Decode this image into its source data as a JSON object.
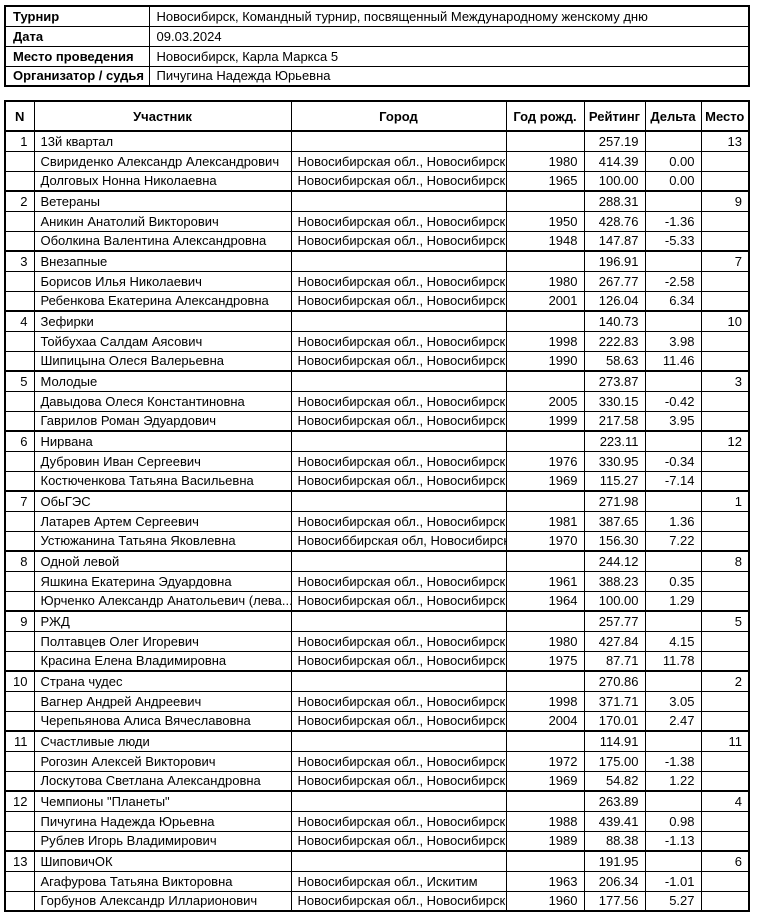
{
  "info": {
    "rows": [
      {
        "label": "Турнир",
        "value": "Новосибирск, Командный турнир, посвященный Международному женскому дню"
      },
      {
        "label": "Дата",
        "value": "09.03.2024"
      },
      {
        "label": "Место проведения",
        "value": "Новосибирск, Карла Маркса 5"
      },
      {
        "label": "Организатор / судья",
        "value": "Пичугина Надежда Юрьевна"
      }
    ]
  },
  "results": {
    "headers": [
      "N",
      "Участник",
      "Город",
      "Год рожд.",
      "Рейтинг",
      "Дельта",
      "Место"
    ],
    "teams": [
      {
        "n": "1",
        "name": "13й квартал",
        "rating": "257.19",
        "place": "13",
        "players": [
          {
            "name": "Свириденко Александр Александрович",
            "city": "Новосибирская обл., Новосибирск",
            "year": "1980",
            "rating": "414.39",
            "delta": "0.00"
          },
          {
            "name": "Долговых Нонна Николаевна",
            "city": "Новосибирская обл., Новосибирск",
            "year": "1965",
            "rating": "100.00",
            "delta": "0.00"
          }
        ]
      },
      {
        "n": "2",
        "name": "Ветераны",
        "rating": "288.31",
        "place": "9",
        "players": [
          {
            "name": "Аникин Анатолий Викторович",
            "city": "Новосибирская обл., Новосибирск",
            "year": "1950",
            "rating": "428.76",
            "delta": "-1.36"
          },
          {
            "name": "Оболкина Валентина Александровна",
            "city": "Новосибирская обл., Новосибирск",
            "year": "1948",
            "rating": "147.87",
            "delta": "-5.33"
          }
        ]
      },
      {
        "n": "3",
        "name": "Внезапные",
        "rating": "196.91",
        "place": "7",
        "players": [
          {
            "name": "Борисов Илья Николаевич",
            "city": "Новосибирская обл., Новосибирск",
            "year": "1980",
            "rating": "267.77",
            "delta": "-2.58"
          },
          {
            "name": "Ребенкова Екатерина Александровна",
            "city": "Новосибирская обл., Новосибирск",
            "year": "2001",
            "rating": "126.04",
            "delta": "6.34"
          }
        ]
      },
      {
        "n": "4",
        "name": "Зефирки",
        "rating": "140.73",
        "place": "10",
        "players": [
          {
            "name": "Тойбухаа Салдам Аясович",
            "city": "Новосибирская обл., Новосибирск",
            "year": "1998",
            "rating": "222.83",
            "delta": "3.98"
          },
          {
            "name": "Шипицына Олеся Валерьевна",
            "city": "Новосибирская обл., Новосибирск",
            "year": "1990",
            "rating": "58.63",
            "delta": "11.46"
          }
        ]
      },
      {
        "n": "5",
        "name": "Молодые",
        "rating": "273.87",
        "place": "3",
        "players": [
          {
            "name": "Давыдова Олеся Константиновна",
            "city": "Новосибирская обл., Новосибирск",
            "year": "2005",
            "rating": "330.15",
            "delta": "-0.42"
          },
          {
            "name": "Гаврилов Роман Эдуардович",
            "city": "Новосибирская обл., Новосибирск",
            "year": "1999",
            "rating": "217.58",
            "delta": "3.95"
          }
        ]
      },
      {
        "n": "6",
        "name": "Нирвана",
        "rating": "223.11",
        "place": "12",
        "players": [
          {
            "name": "Дубровин Иван Сергеевич",
            "city": "Новосибирская обл., Новосибирск",
            "year": "1976",
            "rating": "330.95",
            "delta": "-0.34"
          },
          {
            "name": "Костюченкова Татьяна Васильевна",
            "city": "Новосибирская обл., Новосибирск",
            "year": "1969",
            "rating": "115.27",
            "delta": "-7.14"
          }
        ]
      },
      {
        "n": "7",
        "name": "ОбьГЭС",
        "rating": "271.98",
        "place": "1",
        "players": [
          {
            "name": "Латарев Артем Сергеевич",
            "city": "Новосибирская обл., Новосибирск",
            "year": "1981",
            "rating": "387.65",
            "delta": "1.36"
          },
          {
            "name": "Устюжанина Татьяна Яковлевна",
            "city": "Новосиббирская обл, Новосибирск",
            "year": "1970",
            "rating": "156.30",
            "delta": "7.22"
          }
        ]
      },
      {
        "n": "8",
        "name": "Одной левой",
        "rating": "244.12",
        "place": "8",
        "players": [
          {
            "name": "Яшкина Екатерина Эдуардовна",
            "city": "Новосибирская обл., Новосибирск",
            "year": "1961",
            "rating": "388.23",
            "delta": "0.35"
          },
          {
            "name": "Юрченко Александр Анатольевич (лева...",
            "city": "Новосибирская обл., Новосибирск",
            "year": "1964",
            "rating": "100.00",
            "delta": "1.29"
          }
        ]
      },
      {
        "n": "9",
        "name": "РЖД",
        "rating": "257.77",
        "place": "5",
        "players": [
          {
            "name": "Полтавцев Олег Игоревич",
            "city": "Новосибирская обл., Новосибирск",
            "year": "1980",
            "rating": "427.84",
            "delta": "4.15"
          },
          {
            "name": "Красина Елена Владимировна",
            "city": "Новосибирская обл., Новосибирск",
            "year": "1975",
            "rating": "87.71",
            "delta": "11.78"
          }
        ]
      },
      {
        "n": "10",
        "name": "Страна чудес",
        "rating": "270.86",
        "place": "2",
        "players": [
          {
            "name": "Вагнер Андрей Андреевич",
            "city": "Новосибирская обл., Новосибирск",
            "year": "1998",
            "rating": "371.71",
            "delta": "3.05"
          },
          {
            "name": "Черепьянова Алиса Вячеславовна",
            "city": "Новосибирская обл., Новосибирск",
            "year": "2004",
            "rating": "170.01",
            "delta": "2.47"
          }
        ]
      },
      {
        "n": "11",
        "name": "Счастливые люди",
        "rating": "114.91",
        "place": "11",
        "players": [
          {
            "name": "Рогозин Алексей Викторович",
            "city": "Новосибирская обл., Новосибирск",
            "year": "1972",
            "rating": "175.00",
            "delta": "-1.38"
          },
          {
            "name": "Лоскутова Светлана Александровна",
            "city": "Новосибирская обл., Новосибирск",
            "year": "1969",
            "rating": "54.82",
            "delta": "1.22"
          }
        ]
      },
      {
        "n": "12",
        "name": "Чемпионы \"Планеты\"",
        "rating": "263.89",
        "place": "4",
        "players": [
          {
            "name": "Пичугина Надежда Юрьевна",
            "city": "Новосибирская обл., Новосибирск",
            "year": "1988",
            "rating": "439.41",
            "delta": "0.98"
          },
          {
            "name": "Рублев Игорь Владимирович",
            "city": "Новосибирская обл., Новосибирск",
            "year": "1989",
            "rating": "88.38",
            "delta": "-1.13"
          }
        ]
      },
      {
        "n": "13",
        "name": "ШиповичОК",
        "rating": "191.95",
        "place": "6",
        "players": [
          {
            "name": "Агафурова Татьяна Викторовна",
            "city": "Новосибирская обл., Искитим",
            "year": "1963",
            "rating": "206.34",
            "delta": "-1.01"
          },
          {
            "name": "Горбунов Александр Илларионович",
            "city": "Новосибирская обл., Новосибирск",
            "year": "1960",
            "rating": "177.56",
            "delta": "5.27"
          }
        ]
      }
    ]
  }
}
